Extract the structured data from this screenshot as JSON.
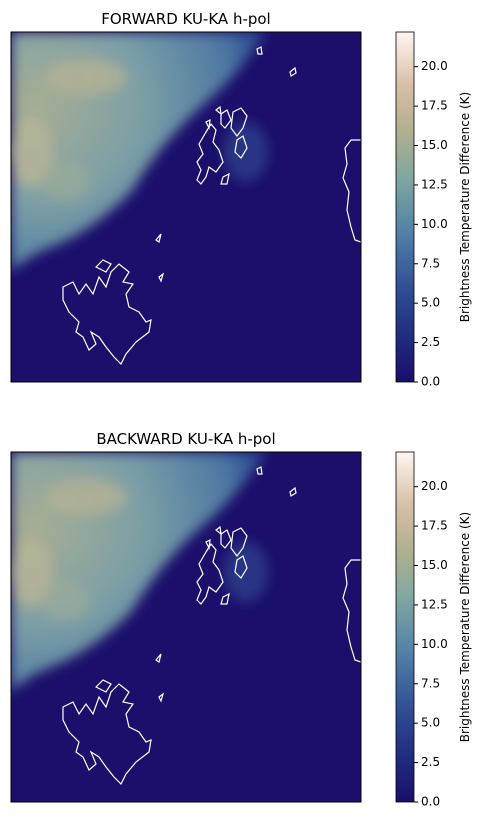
{
  "panels": [
    {
      "title": "FORWARD KU-KA h-pol",
      "colorbar": {
        "label": "Brightness Temperature Difference (K)",
        "lim": [
          0,
          22.2
        ],
        "ticks": [
          {
            "value": 0,
            "label": "0.0"
          },
          {
            "value": 2.5,
            "label": "2.5"
          },
          {
            "value": 5,
            "label": "5.0"
          },
          {
            "value": 7.5,
            "label": "7.5"
          },
          {
            "value": 10,
            "label": "10.0"
          },
          {
            "value": 12.5,
            "label": "12.5"
          },
          {
            "value": 15,
            "label": "15.0"
          },
          {
            "value": 17.5,
            "label": "17.5"
          },
          {
            "value": 20,
            "label": "20.0"
          }
        ]
      }
    },
    {
      "title": "BACKWARD KU-KA h-pol",
      "colorbar": {
        "label": "Brightness Temperature Difference (K)",
        "lim": [
          0,
          22.2
        ],
        "ticks": [
          {
            "value": 0,
            "label": "0.0"
          },
          {
            "value": 2.5,
            "label": "2.5"
          },
          {
            "value": 5,
            "label": "5.0"
          },
          {
            "value": 7.5,
            "label": "7.5"
          },
          {
            "value": 10,
            "label": "10.0"
          },
          {
            "value": 12.5,
            "label": "12.5"
          },
          {
            "value": 15,
            "label": "15.0"
          },
          {
            "value": 17.5,
            "label": "17.5"
          },
          {
            "value": 20,
            "label": "20.0"
          }
        ]
      }
    }
  ]
}
